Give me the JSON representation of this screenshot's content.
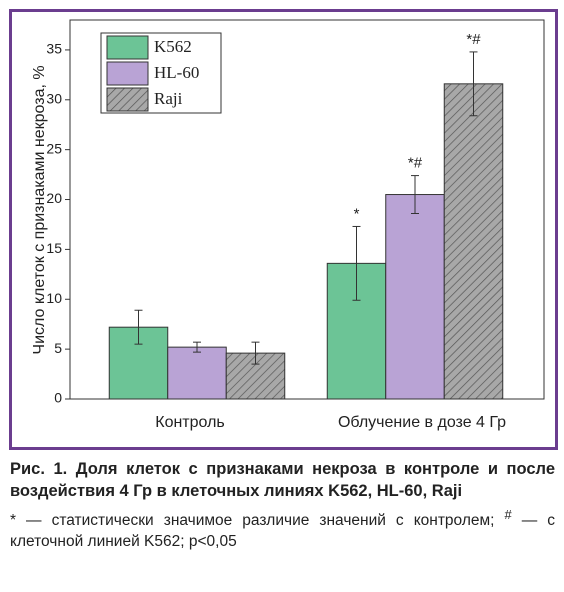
{
  "chart_data": {
    "type": "bar",
    "y_label": "Число клеток с признаками некроза, %",
    "categories": [
      "Контроль",
      "Облучение в дозе 4 Гр"
    ],
    "series": [
      {
        "name": "K562",
        "color": "#6cc496",
        "values": [
          7.2,
          13.6
        ],
        "errors": [
          1.7,
          3.7
        ],
        "annotations": [
          null,
          "*"
        ]
      },
      {
        "name": "HL-60",
        "color": "#b9a3d5",
        "values": [
          5.2,
          20.5
        ],
        "errors": [
          0.5,
          1.9
        ],
        "annotations": [
          null,
          "*#"
        ]
      },
      {
        "name": "Raji",
        "color": "#a8a8a8",
        "hatch": true,
        "values": [
          4.6,
          31.6
        ],
        "errors": [
          1.1,
          3.2
        ],
        "annotations": [
          null,
          "*#"
        ]
      }
    ],
    "ylim": [
      0,
      38
    ],
    "yticks": [
      0,
      5,
      10,
      15,
      20,
      25,
      30,
      35
    ],
    "legend": "upper left"
  },
  "caption": {
    "title": "Рис. 1. Доля клеток с признаками некроза в контроле и после воздействия 4 Гр в клеточных линиях K562, HL-60, Raji",
    "note_1": "* — статистически значимое различие значений с контролем; ",
    "note_mark": "#",
    "note_2": " — с клеточной линией K562; p<0,05"
  }
}
